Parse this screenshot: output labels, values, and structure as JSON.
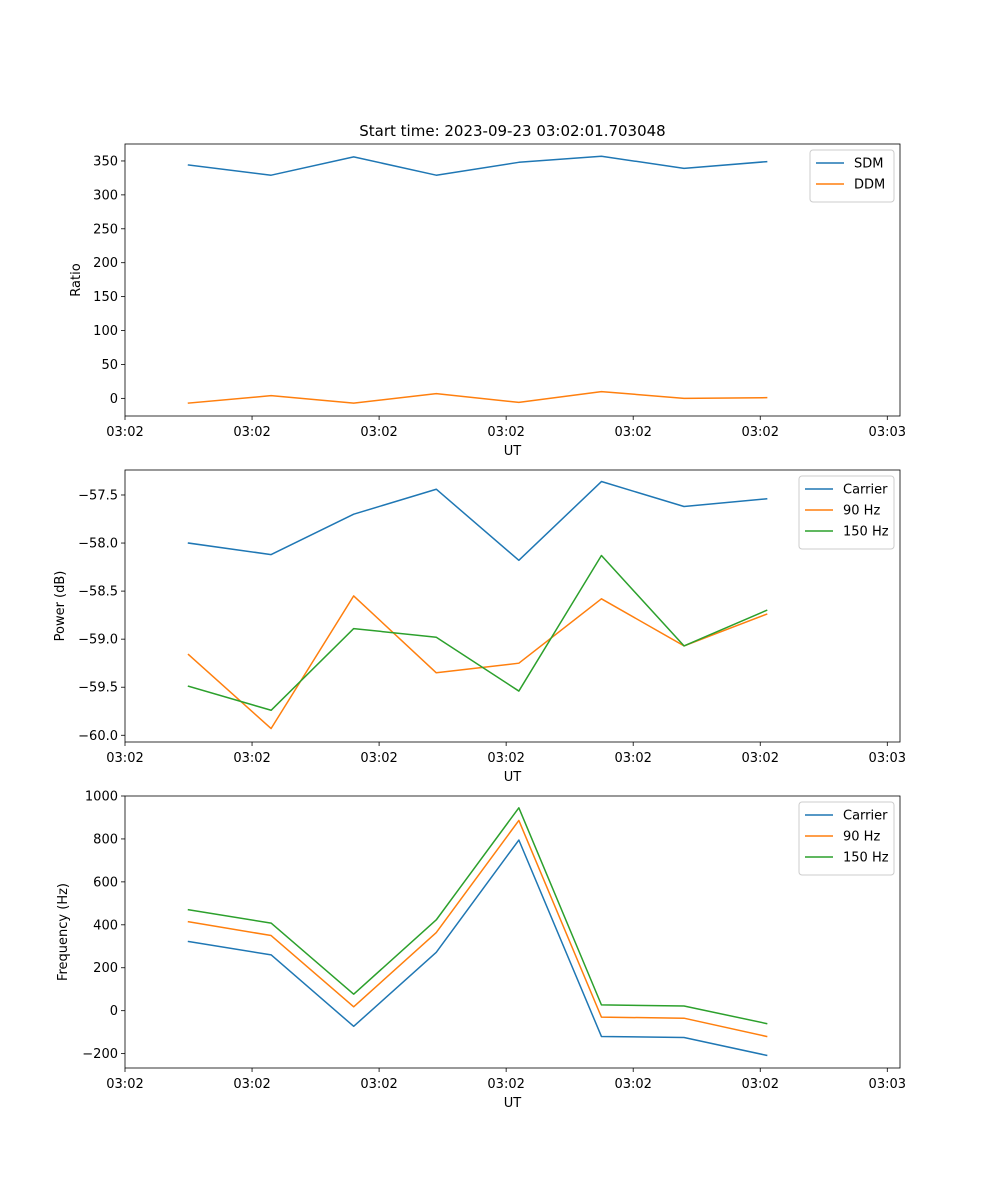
{
  "chart_data": [
    {
      "type": "line",
      "title": "Start time: 2023-09-23 03:02:01.703048",
      "xlabel": "UT",
      "ylabel": "Ratio",
      "xlim": [
        0,
        6.1
      ],
      "x": [
        0.5,
        1.15,
        1.8,
        2.45,
        3.1,
        3.75,
        4.4,
        5.05
      ],
      "xticks": [
        0.0,
        1.0,
        2.0,
        3.0,
        4.0,
        5.0,
        6.0
      ],
      "xticklabels": [
        "03:02",
        "03:02",
        "03:02",
        "03:02",
        "03:02",
        "03:02",
        "03:03"
      ],
      "ylim": [
        -26,
        375
      ],
      "yticks": [
        0,
        50,
        100,
        150,
        200,
        250,
        300,
        350
      ],
      "yticklabels": [
        "0",
        "50",
        "100",
        "150",
        "200",
        "250",
        "300",
        "350"
      ],
      "legend_position": "top-right",
      "series": [
        {
          "name": "SDM",
          "color": "#1f77b4",
          "values": [
            344,
            329,
            356,
            329,
            348,
            357,
            339,
            349
          ]
        },
        {
          "name": "DDM",
          "color": "#ff7f0e",
          "values": [
            -7,
            4,
            -7,
            7,
            -6,
            10,
            0,
            1
          ]
        }
      ]
    },
    {
      "type": "line",
      "title": "",
      "xlabel": "UT",
      "ylabel": "Power (dB)",
      "xlim": [
        0,
        6.1
      ],
      "x": [
        0.5,
        1.15,
        1.8,
        2.45,
        3.1,
        3.75,
        4.4,
        5.05
      ],
      "xticks": [
        0.0,
        1.0,
        2.0,
        3.0,
        4.0,
        5.0,
        6.0
      ],
      "xticklabels": [
        "03:02",
        "03:02",
        "03:02",
        "03:02",
        "03:02",
        "03:02",
        "03:03"
      ],
      "ylim": [
        -60.07,
        -57.24
      ],
      "yticks": [
        -60.0,
        -59.5,
        -59.0,
        -58.5,
        -58.0,
        -57.5
      ],
      "yticklabels": [
        "−60.0",
        "−59.5",
        "−59.0",
        "−58.5",
        "−58.0",
        "−57.5"
      ],
      "legend_position": "top-right",
      "series": [
        {
          "name": "Carrier",
          "color": "#1f77b4",
          "values": [
            -58.0,
            -58.12,
            -57.7,
            -57.44,
            -58.18,
            -57.36,
            -57.62,
            -57.54
          ]
        },
        {
          "name": "90 Hz",
          "color": "#ff7f0e",
          "values": [
            -59.16,
            -59.93,
            -58.55,
            -59.35,
            -59.25,
            -58.58,
            -59.07,
            -58.74
          ]
        },
        {
          "name": "150 Hz",
          "color": "#2ca02c",
          "values": [
            -59.49,
            -59.74,
            -58.89,
            -58.98,
            -59.54,
            -58.13,
            -59.07,
            -58.7
          ]
        }
      ]
    },
    {
      "type": "line",
      "title": "",
      "xlabel": "UT",
      "ylabel": "Frequency (Hz)",
      "xlim": [
        0,
        6.1
      ],
      "x": [
        0.5,
        1.15,
        1.8,
        2.45,
        3.1,
        3.75,
        4.4,
        5.05
      ],
      "xticks": [
        0.0,
        1.0,
        2.0,
        3.0,
        4.0,
        5.0,
        6.0
      ],
      "xticklabels": [
        "03:02",
        "03:02",
        "03:02",
        "03:02",
        "03:02",
        "03:02",
        "03:03"
      ],
      "ylim": [
        -267,
        1000
      ],
      "yticks": [
        -200,
        0,
        200,
        400,
        600,
        800,
        1000
      ],
      "yticklabels": [
        "−200",
        "0",
        "200",
        "400",
        "600",
        "800",
        "1000"
      ],
      "legend_position": "top-right",
      "series": [
        {
          "name": "Carrier",
          "color": "#1f77b4",
          "values": [
            322,
            260,
            -73,
            272,
            795,
            -120,
            -125,
            -208
          ]
        },
        {
          "name": "90 Hz",
          "color": "#ff7f0e",
          "values": [
            414,
            350,
            18,
            364,
            886,
            -30,
            -35,
            -120
          ]
        },
        {
          "name": "150 Hz",
          "color": "#2ca02c",
          "values": [
            470,
            408,
            77,
            423,
            945,
            27,
            22,
            -60
          ]
        }
      ]
    }
  ]
}
